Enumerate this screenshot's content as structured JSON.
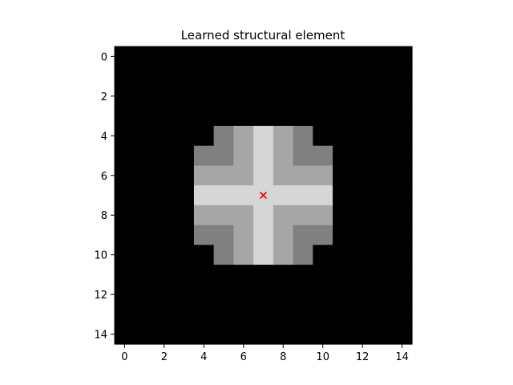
{
  "chart_data": {
    "type": "heatmap",
    "title": "Learned structural element",
    "xlabel": "",
    "ylabel": "",
    "colormap": "gray",
    "value_range": [
      0,
      1
    ],
    "grid": false,
    "x_ticks": [
      0,
      2,
      4,
      6,
      8,
      10,
      12,
      14
    ],
    "y_ticks": [
      0,
      2,
      4,
      6,
      8,
      10,
      12,
      14
    ],
    "x_tick_labels": [
      "0",
      "2",
      "4",
      "6",
      "8",
      "10",
      "12",
      "14"
    ],
    "y_tick_labels": [
      "0",
      "2",
      "4",
      "6",
      "8",
      "10",
      "12",
      "14"
    ],
    "xlim": [
      -0.5,
      14.5
    ],
    "ylim": [
      14.5,
      -0.5
    ],
    "values": [
      [
        0,
        0,
        0,
        0,
        0,
        0,
        0,
        0,
        0,
        0,
        0,
        0,
        0,
        0,
        0
      ],
      [
        0,
        0,
        0,
        0,
        0,
        0,
        0,
        0,
        0,
        0,
        0,
        0,
        0,
        0,
        0
      ],
      [
        0,
        0,
        0,
        0,
        0,
        0,
        0,
        0,
        0,
        0,
        0,
        0,
        0,
        0,
        0
      ],
      [
        0,
        0,
        0,
        0,
        0,
        0,
        0,
        0,
        0,
        0,
        0,
        0,
        0,
        0,
        0
      ],
      [
        0,
        0,
        0,
        0,
        0,
        0.5,
        0.65,
        0.84,
        0.65,
        0.5,
        0,
        0,
        0,
        0,
        0
      ],
      [
        0,
        0,
        0,
        0,
        0.5,
        0.5,
        0.65,
        0.84,
        0.65,
        0.5,
        0.5,
        0,
        0,
        0,
        0
      ],
      [
        0,
        0,
        0,
        0,
        0.65,
        0.65,
        0.65,
        0.84,
        0.65,
        0.65,
        0.65,
        0,
        0,
        0,
        0
      ],
      [
        0,
        0,
        0,
        0,
        0.84,
        0.84,
        0.84,
        0.84,
        0.84,
        0.84,
        0.84,
        0,
        0,
        0,
        0
      ],
      [
        0,
        0,
        0,
        0,
        0.65,
        0.65,
        0.65,
        0.84,
        0.65,
        0.65,
        0.65,
        0,
        0,
        0,
        0
      ],
      [
        0,
        0,
        0,
        0,
        0.5,
        0.5,
        0.65,
        0.84,
        0.65,
        0.5,
        0.5,
        0,
        0,
        0,
        0
      ],
      [
        0,
        0,
        0,
        0,
        0,
        0.5,
        0.65,
        0.84,
        0.65,
        0.5,
        0,
        0,
        0,
        0,
        0
      ],
      [
        0,
        0,
        0,
        0,
        0,
        0,
        0,
        0,
        0,
        0,
        0,
        0,
        0,
        0,
        0
      ],
      [
        0,
        0,
        0,
        0,
        0,
        0,
        0,
        0,
        0,
        0,
        0,
        0,
        0,
        0,
        0
      ],
      [
        0,
        0,
        0,
        0,
        0,
        0,
        0,
        0,
        0,
        0,
        0,
        0,
        0,
        0,
        0
      ],
      [
        0,
        0,
        0,
        0,
        0,
        0,
        0,
        0,
        0,
        0,
        0,
        0,
        0,
        0,
        0
      ]
    ],
    "annotations": [
      {
        "type": "marker",
        "marker": "x",
        "x": 7,
        "y": 7,
        "color": "#ff0000"
      }
    ]
  }
}
